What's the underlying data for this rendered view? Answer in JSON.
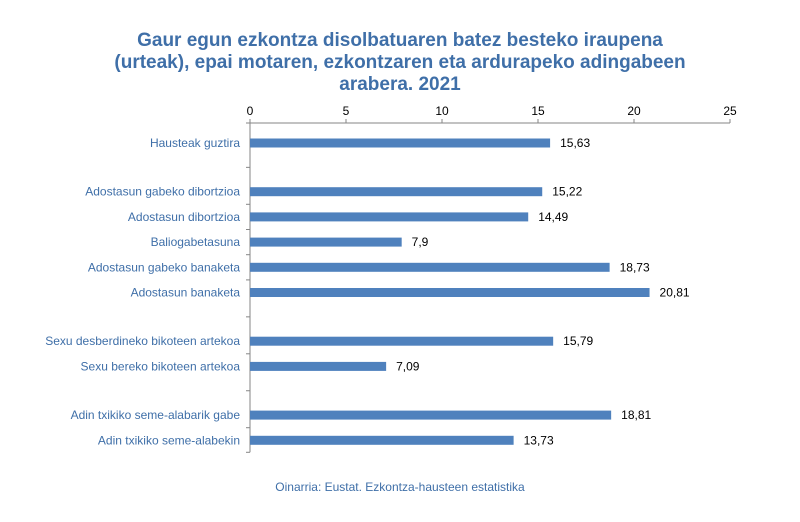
{
  "chart_data": {
    "type": "bar",
    "orientation": "horizontal",
    "title_lines": [
      "Gaur egun ezkontza disolbatuaren batez besteko iraupena",
      "(urteak), epai motaren, ezkontzaren eta ardurapeko adingabeen",
      "arabera. 2021"
    ],
    "source": "Oinarria: Eustat. Ezkontza-hausteen estatistika",
    "xlim": [
      0,
      25
    ],
    "xticks": [
      "0",
      "5",
      "10",
      "15",
      "20",
      "25"
    ],
    "grid": false,
    "bar_color": "#4f81bd",
    "label_color": "#3f6fa8",
    "groups": [
      {
        "categories": [
          "Hausteak guztira"
        ],
        "values": [
          15.63
        ],
        "value_labels": [
          "15,63"
        ]
      },
      {
        "categories": [
          "Adostasun gabeko dibortzioa",
          "Adostasun dibortzioa",
          "Baliogabetasuna",
          "Adostasun gabeko banaketa",
          "Adostasun banaketa"
        ],
        "values": [
          15.22,
          14.49,
          7.9,
          18.73,
          20.81
        ],
        "value_labels": [
          "15,22",
          "14,49",
          "7,9",
          "18,73",
          "20,81"
        ]
      },
      {
        "categories": [
          "Sexu desberdineko bikoteen artekoa",
          "Sexu bereko bikoteen artekoa"
        ],
        "values": [
          15.79,
          7.09
        ],
        "value_labels": [
          "15,79",
          "7,09"
        ]
      },
      {
        "categories": [
          "Adin txikiko seme-alabarik gabe",
          "Adin txikiko seme-alabekin"
        ],
        "values": [
          18.81,
          13.73
        ],
        "value_labels": [
          "18,81",
          "13,73"
        ]
      }
    ]
  }
}
